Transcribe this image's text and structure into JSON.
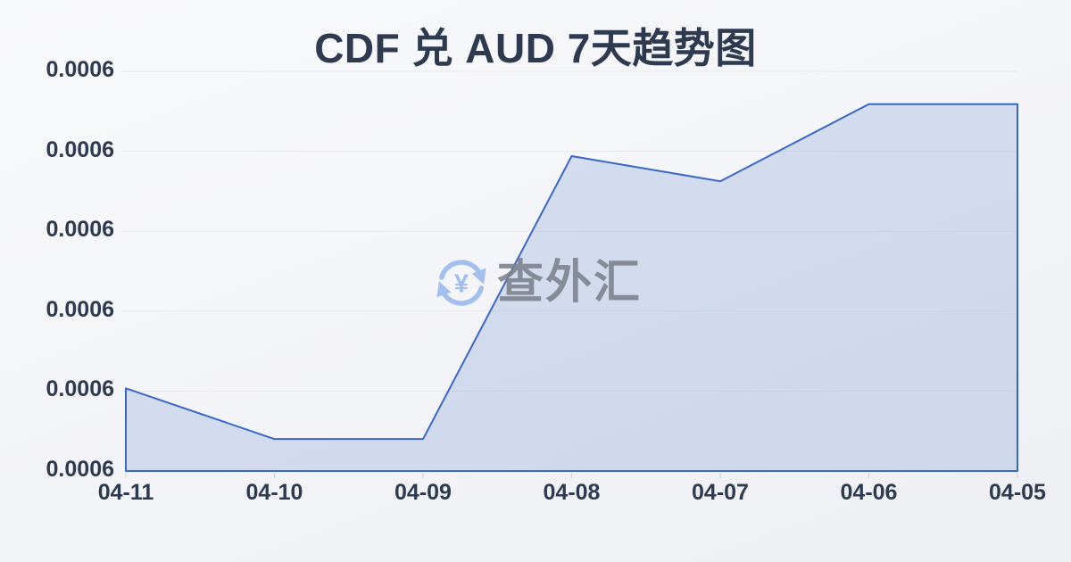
{
  "watermark": {
    "icon": "currency-exchange-icon",
    "text": "查外汇",
    "icon_color": "#a3bfee",
    "text_color": "#7a818b"
  },
  "colors": {
    "background_top": "#f8f9fb",
    "background_bottom": "#edeff3",
    "title_text": "#2e3a4f",
    "axis_label_text": "#2e3a4f",
    "grid_line": "#e7e9ed",
    "trend_line": "#3a67c6",
    "area_fill": "rgba(78, 118, 200, 0.20)",
    "tick_mark": "#cdd0d6"
  },
  "chart_data": {
    "type": "area",
    "title": "CDF 兑 AUD 7天趋势图",
    "xlabel": "",
    "ylabel": "",
    "categories": [
      "04-11",
      "04-10",
      "04-09",
      "04-08",
      "04-07",
      "04-06",
      "04-05"
    ],
    "values": [
      "0.0006",
      "0.0006",
      "0.0006",
      "0.0006",
      "0.0006",
      "0.0006",
      "0.0006"
    ],
    "normalized_heights": [
      0.207,
      0.08,
      0.08,
      0.788,
      0.725,
      0.918,
      0.918
    ],
    "y_tick_labels": [
      "0.0006",
      "0.0006",
      "0.0006",
      "0.0006",
      "0.0006",
      "0.0006"
    ],
    "grid": true,
    "legend": false,
    "x_tick_marks": true,
    "line_width": 2
  }
}
